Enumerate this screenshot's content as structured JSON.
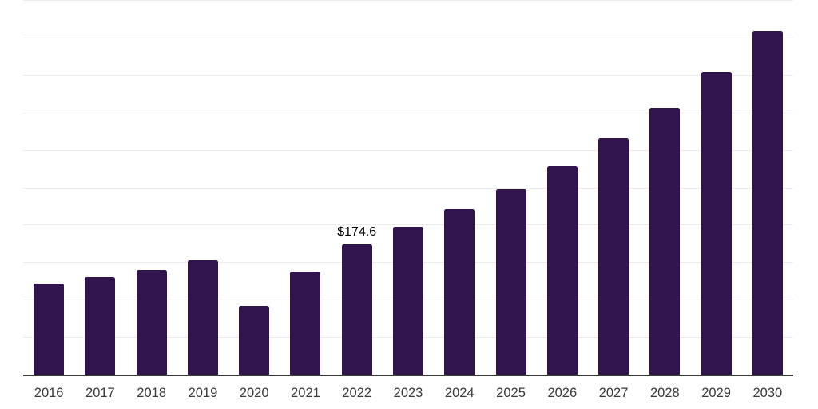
{
  "chart_data": {
    "type": "bar",
    "title": "",
    "xlabel": "",
    "ylabel": "",
    "categories": [
      "2016",
      "2017",
      "2018",
      "2019",
      "2020",
      "2021",
      "2022",
      "2023",
      "2024",
      "2025",
      "2026",
      "2027",
      "2028",
      "2029",
      "2030"
    ],
    "values": [
      122.2,
      131.0,
      140.7,
      153.1,
      93.0,
      138.2,
      174.6,
      198.1,
      221.6,
      248.5,
      279.5,
      316.9,
      357.1,
      405.2,
      459.4
    ],
    "bar_labels": [
      "",
      "",
      "",
      "",
      "",
      "",
      "$174.6",
      "",
      "",
      "",
      "",
      "",
      "",
      "",
      ""
    ],
    "ylim": [
      0,
      500
    ],
    "gridline_step": 50,
    "grid": "horizontal-only",
    "legend": "none",
    "y_tick_labels_visible": false
  },
  "colors": {
    "bar": "#31134e",
    "gridline": "#ededed",
    "axis_line": "#3d3d3d",
    "x_label": "#3c3c3c",
    "value_label": "#000000",
    "background": "#ffffff"
  }
}
